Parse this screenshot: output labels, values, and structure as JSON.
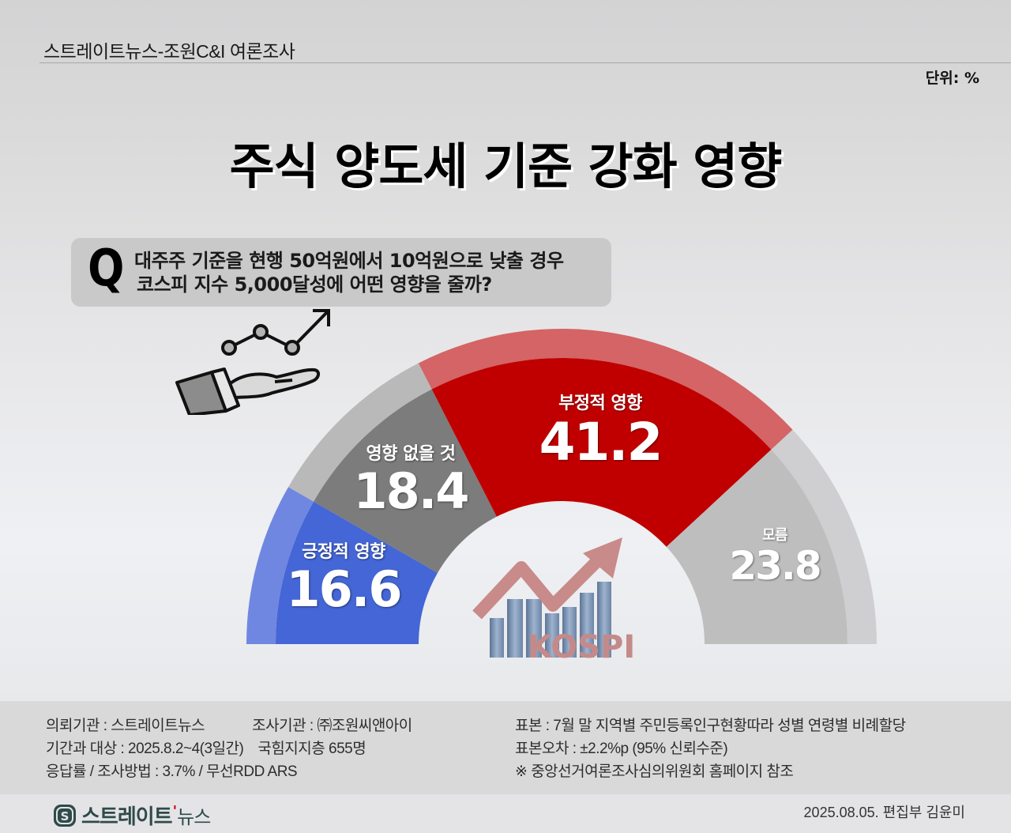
{
  "header": {
    "source": "스트레이트뉴스-조원C&I 여론조사",
    "unit": "단위: %"
  },
  "title": "주식 양도세 기준 강화 영향",
  "question": {
    "mark": "Q",
    "line1": "대주주 기준을 현행 50억원에서 10억원으로 낮출 경우",
    "line2": "코스피 지수 5,000달성에 어떤 영향을 줄까?"
  },
  "icons": {
    "hand": "hand-chart-icon",
    "kospi": "kospi-chart-icon",
    "kospi_text": "KOSPI"
  },
  "chart_data": {
    "type": "pie",
    "subtype": "semicircle-gauge",
    "title": "주식 양도세 기준 강화 영향",
    "unit": "%",
    "categories": [
      "긍정적 영향",
      "영향 없을 것",
      "부정적 영향",
      "모름"
    ],
    "values": [
      16.6,
      18.4,
      41.2,
      23.8
    ],
    "colors": [
      "#4466d6",
      "#7c7c7c",
      "#c00000",
      "#bebebe"
    ],
    "outer_band_colors": [
      "#6f87e0",
      "#b9b9ba",
      "#d46465",
      "#cfcfd1"
    ],
    "labels": [
      {
        "label": "긍정적 영향",
        "value": "16.6"
      },
      {
        "label": "영향 없을 것",
        "value": "18.4"
      },
      {
        "label": "부정적 영향",
        "value": "41.2"
      },
      {
        "label": "모름",
        "value": "23.8"
      }
    ]
  },
  "footer": {
    "left": [
      {
        "k1": "의뢰기관 : 스트레이트뉴스",
        "k2": "조사기관 : ㈜조원씨앤아이"
      },
      {
        "k1": "기간과 대상 : 2025.8.2~4(3일간)",
        "k2": "국힘지지층 655명"
      },
      {
        "k1": "응답률 / 조사방법 : 3.7% / 무선RDD ARS",
        "k2": ""
      }
    ],
    "right": [
      "표본 : 7월 말 지역별 주민등록인구현황따라 성별 연령별 비례할당",
      "표본오차 : ±2.2%p (95% 신뢰수준)",
      "※ 중앙선거여론조사심의위원회 홈페이지 참조"
    ]
  },
  "bottom": {
    "logo_main": "스트레이트",
    "logo_tick": "'",
    "logo_sub": "뉴스",
    "credit": "2025.08.05. 편집부 김윤미"
  }
}
